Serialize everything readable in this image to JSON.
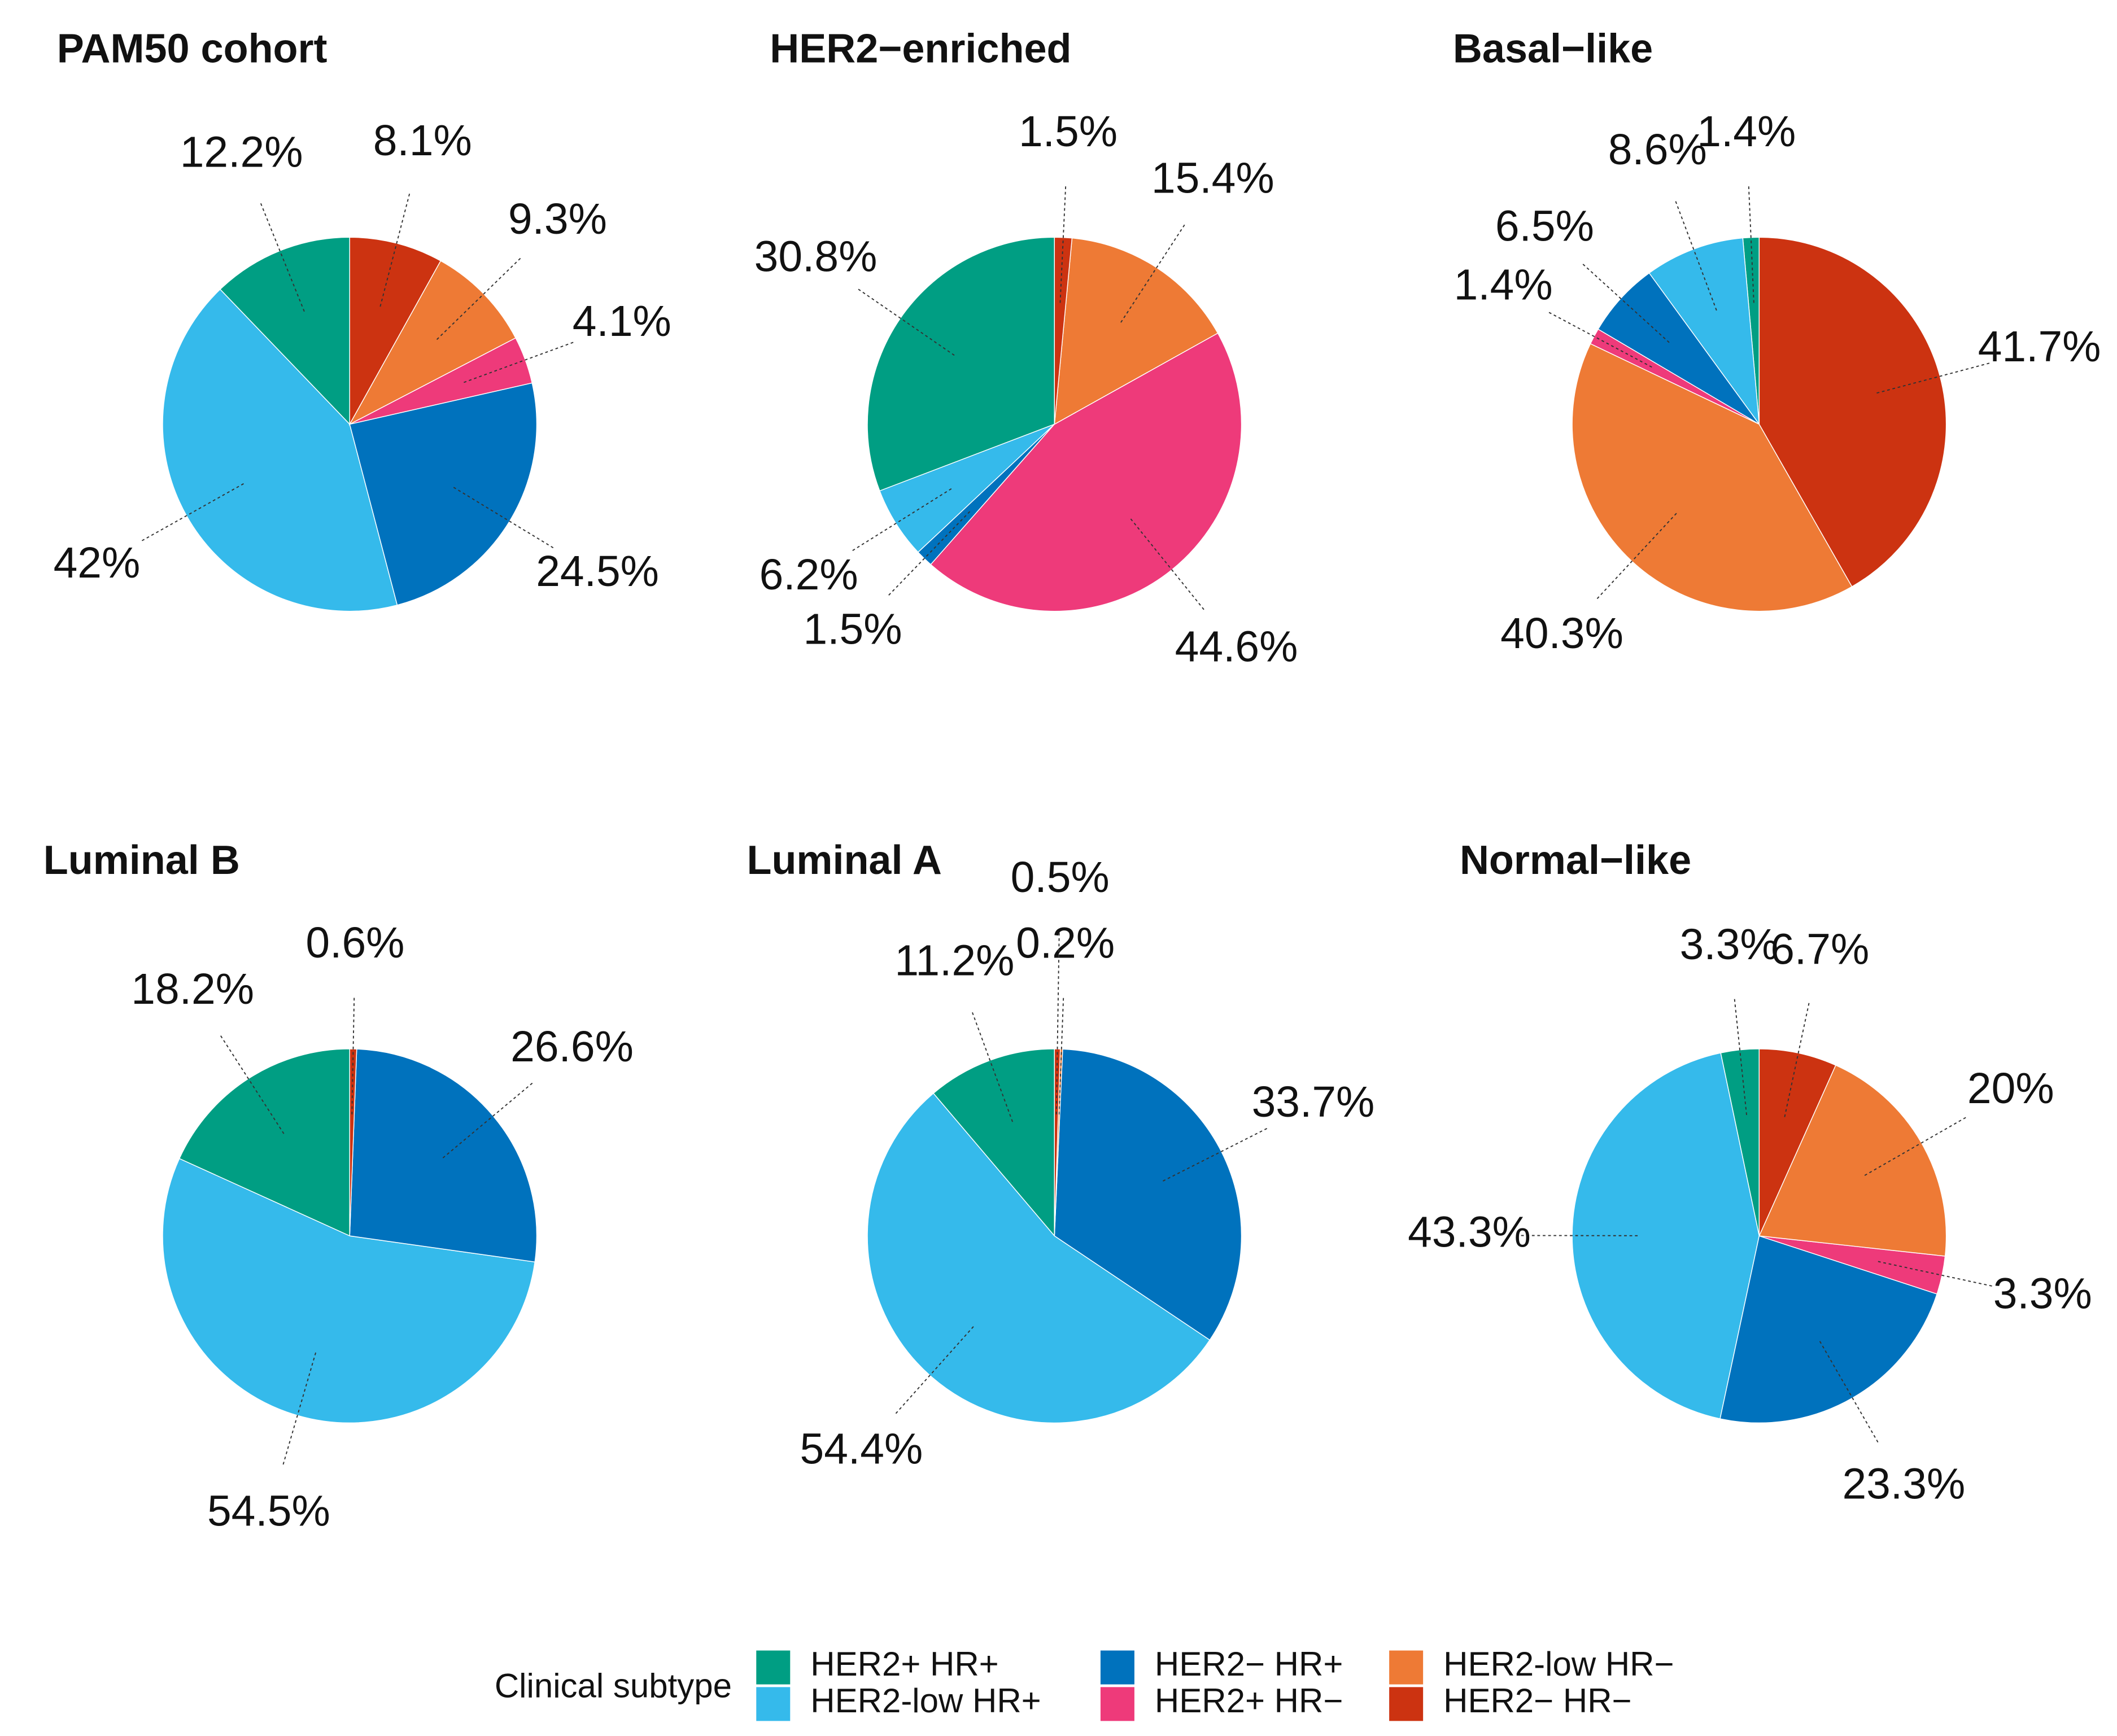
{
  "chart_data": [
    {
      "type": "pie",
      "title": "PAM50 cohort",
      "categories": [
        "HER2+ HR+",
        "HER2-low HR+",
        "HER2− HR+",
        "HER2+ HR−",
        "HER2-low HR−",
        "HER2− HR−"
      ],
      "colors": [
        "#009E83",
        "#35BAEB",
        "#0072BD",
        "#EE3A7A",
        "#EE7A35",
        "#CC3311"
      ],
      "values": [
        12.2,
        42,
        24.5,
        4.1,
        9.3,
        8.1
      ],
      "value_labels": [
        "12.2%",
        "42%",
        "24.5%",
        "4.1%",
        "9.3%",
        "8.1%"
      ]
    },
    {
      "type": "pie",
      "title": "HER2−enriched",
      "categories": [
        "HER2+ HR+",
        "HER2-low HR+",
        "HER2− HR+",
        "HER2+ HR−",
        "HER2-low HR−",
        "HER2− HR−"
      ],
      "colors": [
        "#009E83",
        "#35BAEB",
        "#0072BD",
        "#EE3A7A",
        "#EE7A35",
        "#CC3311"
      ],
      "values": [
        30.8,
        6.2,
        1.5,
        44.6,
        15.4,
        1.5
      ],
      "value_labels": [
        "30.8%",
        "6.2%",
        "1.5%",
        "44.6%",
        "15.4%",
        "1.5%"
      ]
    },
    {
      "type": "pie",
      "title": "Basal−like",
      "categories": [
        "HER2+ HR+",
        "HER2-low HR+",
        "HER2− HR+",
        "HER2+ HR−",
        "HER2-low HR−",
        "HER2− HR−"
      ],
      "colors": [
        "#009E83",
        "#35BAEB",
        "#0072BD",
        "#EE3A7A",
        "#EE7A35",
        "#CC3311"
      ],
      "values": [
        1.4,
        8.6,
        6.5,
        1.4,
        40.3,
        41.7
      ],
      "value_labels": [
        "1.4%",
        "8.6%",
        "6.5%",
        "1.4%",
        "40.3%",
        "41.7%"
      ]
    },
    {
      "type": "pie",
      "title": "Luminal B",
      "categories": [
        "HER2+ HR+",
        "HER2-low HR+",
        "HER2− HR+",
        "HER2+ HR−",
        "HER2-low HR−",
        "HER2− HR−"
      ],
      "colors": [
        "#009E83",
        "#35BAEB",
        "#0072BD",
        "#EE3A7A",
        "#EE7A35",
        "#CC3311"
      ],
      "values": [
        18.2,
        54.5,
        26.6,
        null,
        null,
        0.6
      ],
      "value_labels": [
        "18.2%",
        "54.5%",
        "26.6%",
        null,
        null,
        "0.6%"
      ]
    },
    {
      "type": "pie",
      "title": "Luminal A",
      "categories": [
        "HER2+ HR+",
        "HER2-low HR+",
        "HER2− HR+",
        "HER2+ HR−",
        "HER2-low HR−",
        "HER2− HR−"
      ],
      "colors": [
        "#009E83",
        "#35BAEB",
        "#0072BD",
        "#EE3A7A",
        "#EE7A35",
        "#CC3311"
      ],
      "values": [
        11.2,
        54.4,
        33.7,
        null,
        0.2,
        0.5
      ],
      "value_labels": [
        "11.2%",
        "54.4%",
        "33.7%",
        null,
        "0.2%",
        "0.5%"
      ]
    },
    {
      "type": "pie",
      "title": "Normal−like",
      "categories": [
        "HER2+ HR+",
        "HER2-low HR+",
        "HER2− HR+",
        "HER2+ HR−",
        "HER2-low HR−",
        "HER2− HR−"
      ],
      "colors": [
        "#009E83",
        "#35BAEB",
        "#0072BD",
        "#EE3A7A",
        "#EE7A35",
        "#CC3311"
      ],
      "values": [
        3.3,
        43.3,
        23.3,
        3.3,
        20,
        6.7
      ],
      "value_labels": [
        "3.3%",
        "43.3%",
        "23.3%",
        "3.3%",
        "20%",
        "6.7%"
      ]
    }
  ],
  "legend": {
    "title": "Clinical subtype"
  }
}
